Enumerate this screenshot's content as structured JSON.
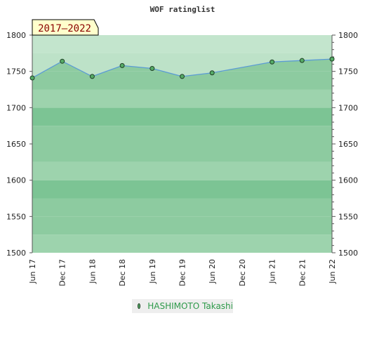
{
  "chart_data": {
    "type": "area",
    "title": "WOF ratinglist",
    "period_badge": "2017–2022",
    "categories": [
      "Jun 17",
      "Dec 17",
      "Jun 18",
      "Dec 18",
      "Jun 19",
      "Dec 19",
      "Jun 20",
      "Dec 20",
      "Jun 21",
      "Dec 21",
      "Jun 22"
    ],
    "ylim": [
      1500,
      1800
    ],
    "yticks": [
      1500,
      1550,
      1600,
      1650,
      1700,
      1750,
      1800
    ],
    "series": [
      {
        "name": "HASHIMOTO Takashi",
        "points": [
          {
            "x": "Jun 17",
            "y": 1741
          },
          {
            "x": "Dec 17",
            "y": 1764
          },
          {
            "x": "Jun 18",
            "y": 1743
          },
          {
            "x": "Dec 18",
            "y": 1758
          },
          {
            "x": "Jun 19",
            "y": 1754
          },
          {
            "x": "Dec 19",
            "y": 1743
          },
          {
            "x": "Jun 20",
            "y": 1748
          },
          {
            "x": "Jun 21",
            "y": 1763
          },
          {
            "x": "Dec 21",
            "y": 1765
          },
          {
            "x": "Jun 22",
            "y": 1767
          }
        ]
      }
    ],
    "colors": {
      "band_dark": "#7cc494",
      "band_medium": "#8dcba0",
      "band_light": "#9dd3ad",
      "band_top": "#b5debf",
      "area_fill": "#c6e6cf",
      "line": "#5b9bd5",
      "marker": "#55aa66",
      "badge_bg": "#ffffcc"
    },
    "grid": true,
    "legend_position": "bottom-center"
  }
}
